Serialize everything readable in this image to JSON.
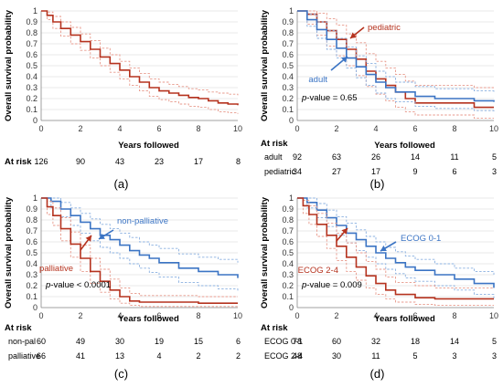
{
  "colors": {
    "red": "#b5321e",
    "red_light": "#e89a8c",
    "blue": "#3b74c4",
    "blue_light": "#8ab0e0",
    "grid": "#d4d4d4"
  },
  "axes": {
    "ylabel": "Overall survival probability",
    "xlabel": "Years followed",
    "risk_header": "At risk",
    "xlim": [
      0,
      10
    ],
    "ylim": [
      0,
      1
    ],
    "xticks": [
      0,
      2,
      4,
      6,
      8,
      10
    ],
    "yticks": [
      "0",
      "0.1",
      "0.2",
      "0.3",
      "0.4",
      "0.5",
      "0.6",
      "0.7",
      "0.8",
      "0.9",
      "1"
    ]
  },
  "chart_data": [
    {
      "type": "line",
      "panel_label": "(a)",
      "pvalue": "",
      "series": [
        {
          "name": "",
          "color_key": "red",
          "x": [
            0,
            0.3,
            0.6,
            1,
            1.5,
            2,
            2.5,
            3,
            3.5,
            4,
            4.5,
            5,
            5.5,
            6,
            6.5,
            7,
            7.5,
            8,
            8.5,
            9,
            9.5,
            10
          ],
          "y": [
            1,
            0.96,
            0.9,
            0.84,
            0.78,
            0.72,
            0.65,
            0.58,
            0.52,
            0.46,
            0.4,
            0.35,
            0.3,
            0.27,
            0.25,
            0.23,
            0.21,
            0.2,
            0.18,
            0.16,
            0.15,
            0.14
          ],
          "ci_upper": [
            1,
            0.99,
            0.95,
            0.9,
            0.85,
            0.79,
            0.73,
            0.66,
            0.6,
            0.54,
            0.48,
            0.43,
            0.38,
            0.35,
            0.33,
            0.31,
            0.29,
            0.28,
            0.26,
            0.25,
            0.24,
            0.23
          ],
          "ci_lower": [
            1,
            0.92,
            0.84,
            0.77,
            0.7,
            0.64,
            0.57,
            0.5,
            0.44,
            0.38,
            0.32,
            0.27,
            0.22,
            0.19,
            0.17,
            0.15,
            0.13,
            0.12,
            0.1,
            0.08,
            0.07,
            0.06
          ]
        }
      ],
      "risk_rows": [
        {
          "label": "",
          "values": [
            "126",
            "90",
            "43",
            "23",
            "17",
            "8"
          ]
        }
      ]
    },
    {
      "type": "line",
      "panel_label": "(b)",
      "pvalue": "p-value = 0.65",
      "series": [
        {
          "name": "pediatric",
          "color_key": "red",
          "x": [
            0,
            0.5,
            1,
            1.5,
            2,
            2.5,
            3,
            3.5,
            4,
            4.5,
            5,
            5.5,
            6,
            7,
            8,
            9,
            10
          ],
          "y": [
            1,
            0.97,
            0.9,
            0.82,
            0.74,
            0.65,
            0.56,
            0.45,
            0.38,
            0.32,
            0.26,
            0.2,
            0.16,
            0.16,
            0.16,
            0.12,
            0.12
          ],
          "ci_upper": [
            1,
            1,
            0.98,
            0.93,
            0.87,
            0.79,
            0.71,
            0.61,
            0.54,
            0.48,
            0.42,
            0.36,
            0.32,
            0.32,
            0.32,
            0.3,
            0.3
          ],
          "ci_lower": [
            1,
            0.88,
            0.78,
            0.68,
            0.59,
            0.5,
            0.41,
            0.31,
            0.24,
            0.18,
            0.12,
            0.08,
            0.05,
            0.05,
            0.05,
            0.02,
            0.02
          ]
        },
        {
          "name": "adult",
          "color_key": "blue",
          "x": [
            0,
            0.5,
            1,
            1.5,
            2,
            2.5,
            3,
            3.5,
            4,
            4.5,
            5,
            6,
            7,
            8,
            9,
            10
          ],
          "y": [
            1,
            0.92,
            0.83,
            0.74,
            0.66,
            0.57,
            0.49,
            0.42,
            0.35,
            0.3,
            0.26,
            0.22,
            0.2,
            0.2,
            0.18,
            0.17
          ],
          "ci_upper": [
            1,
            0.97,
            0.9,
            0.82,
            0.75,
            0.67,
            0.59,
            0.52,
            0.45,
            0.4,
            0.35,
            0.31,
            0.29,
            0.29,
            0.27,
            0.26
          ],
          "ci_lower": [
            1,
            0.86,
            0.75,
            0.65,
            0.57,
            0.48,
            0.39,
            0.32,
            0.25,
            0.2,
            0.17,
            0.13,
            0.11,
            0.11,
            0.09,
            0.08
          ]
        }
      ],
      "risk_rows": [
        {
          "label": "adult",
          "values": [
            "92",
            "63",
            "26",
            "14",
            "11",
            "5"
          ]
        },
        {
          "label": "pediatric",
          "values": [
            "34",
            "27",
            "17",
            "9",
            "6",
            "3"
          ]
        }
      ]
    },
    {
      "type": "line",
      "panel_label": "(c)",
      "pvalue": "p-value < 0.0001",
      "series": [
        {
          "name": "non-palliative",
          "color_key": "blue",
          "x": [
            0,
            0.5,
            1,
            1.5,
            2,
            2.5,
            3,
            3.5,
            4,
            4.5,
            5,
            5.5,
            6,
            7,
            8,
            9,
            10
          ],
          "y": [
            1,
            0.97,
            0.9,
            0.84,
            0.78,
            0.72,
            0.66,
            0.62,
            0.57,
            0.52,
            0.48,
            0.45,
            0.41,
            0.36,
            0.33,
            0.3,
            0.27
          ],
          "ci_upper": [
            1,
            1,
            0.96,
            0.91,
            0.86,
            0.81,
            0.76,
            0.72,
            0.68,
            0.64,
            0.6,
            0.57,
            0.54,
            0.49,
            0.46,
            0.44,
            0.41
          ],
          "ci_lower": [
            1,
            0.91,
            0.83,
            0.75,
            0.68,
            0.61,
            0.55,
            0.5,
            0.45,
            0.4,
            0.36,
            0.32,
            0.28,
            0.23,
            0.2,
            0.17,
            0.14
          ]
        },
        {
          "name": "palliative",
          "color_key": "red",
          "x": [
            0,
            0.3,
            0.6,
            1,
            1.5,
            2,
            2.5,
            3,
            3.5,
            4,
            4.5,
            5,
            6,
            7,
            8,
            9,
            10
          ],
          "y": [
            1,
            0.92,
            0.84,
            0.72,
            0.58,
            0.45,
            0.33,
            0.24,
            0.16,
            0.1,
            0.06,
            0.05,
            0.05,
            0.05,
            0.04,
            0.04,
            0.04
          ],
          "ci_upper": [
            1,
            0.97,
            0.91,
            0.82,
            0.69,
            0.57,
            0.45,
            0.35,
            0.26,
            0.18,
            0.13,
            0.11,
            0.11,
            0.11,
            0.1,
            0.1,
            0.1
          ],
          "ci_lower": [
            1,
            0.85,
            0.75,
            0.61,
            0.46,
            0.33,
            0.22,
            0.14,
            0.08,
            0.04,
            0.02,
            0.01,
            0.01,
            0.01,
            0.01,
            0.01,
            0.01
          ]
        }
      ],
      "risk_rows": [
        {
          "label": "non-pal",
          "values": [
            "60",
            "49",
            "30",
            "19",
            "15",
            "6"
          ]
        },
        {
          "label": "palliative",
          "values": [
            "66",
            "41",
            "13",
            "4",
            "2",
            "2"
          ]
        }
      ]
    },
    {
      "type": "line",
      "panel_label": "(d)",
      "pvalue": "p-value = 0.009",
      "series": [
        {
          "name": "ECOG 0-1",
          "color_key": "blue",
          "x": [
            0,
            0.5,
            1,
            1.5,
            2,
            2.5,
            3,
            3.5,
            4,
            4.5,
            5,
            5.5,
            6,
            7,
            8,
            9,
            10
          ],
          "y": [
            1,
            0.96,
            0.89,
            0.82,
            0.75,
            0.68,
            0.62,
            0.56,
            0.5,
            0.45,
            0.41,
            0.37,
            0.34,
            0.3,
            0.26,
            0.22,
            0.18
          ],
          "ci_upper": [
            1,
            1,
            0.95,
            0.89,
            0.83,
            0.77,
            0.71,
            0.65,
            0.6,
            0.55,
            0.51,
            0.47,
            0.44,
            0.4,
            0.36,
            0.33,
            0.3
          ],
          "ci_lower": [
            1,
            0.91,
            0.82,
            0.74,
            0.66,
            0.59,
            0.52,
            0.46,
            0.4,
            0.35,
            0.31,
            0.27,
            0.24,
            0.2,
            0.16,
            0.12,
            0.08
          ]
        },
        {
          "name": "ECOG 2-4",
          "color_key": "red",
          "x": [
            0,
            0.3,
            0.6,
            1,
            1.5,
            2,
            2.5,
            3,
            3.5,
            4,
            4.5,
            5,
            6,
            7,
            8,
            9,
            10
          ],
          "y": [
            1,
            0.93,
            0.85,
            0.76,
            0.66,
            0.56,
            0.46,
            0.37,
            0.29,
            0.22,
            0.16,
            0.12,
            0.09,
            0.08,
            0.08,
            0.08,
            0.08
          ],
          "ci_upper": [
            1,
            0.98,
            0.93,
            0.86,
            0.77,
            0.68,
            0.59,
            0.5,
            0.42,
            0.35,
            0.28,
            0.23,
            0.2,
            0.18,
            0.18,
            0.18,
            0.18
          ],
          "ci_lower": [
            1,
            0.86,
            0.76,
            0.65,
            0.54,
            0.43,
            0.33,
            0.25,
            0.18,
            0.12,
            0.08,
            0.05,
            0.03,
            0.02,
            0.02,
            0.02,
            0.02
          ]
        }
      ],
      "risk_rows": [
        {
          "label": "ECOG 0-1",
          "values": [
            "78",
            "60",
            "32",
            "18",
            "14",
            "5"
          ]
        },
        {
          "label": "ECOG 2-4",
          "values": [
            "48",
            "30",
            "11",
            "5",
            "3",
            "3"
          ]
        }
      ]
    }
  ]
}
